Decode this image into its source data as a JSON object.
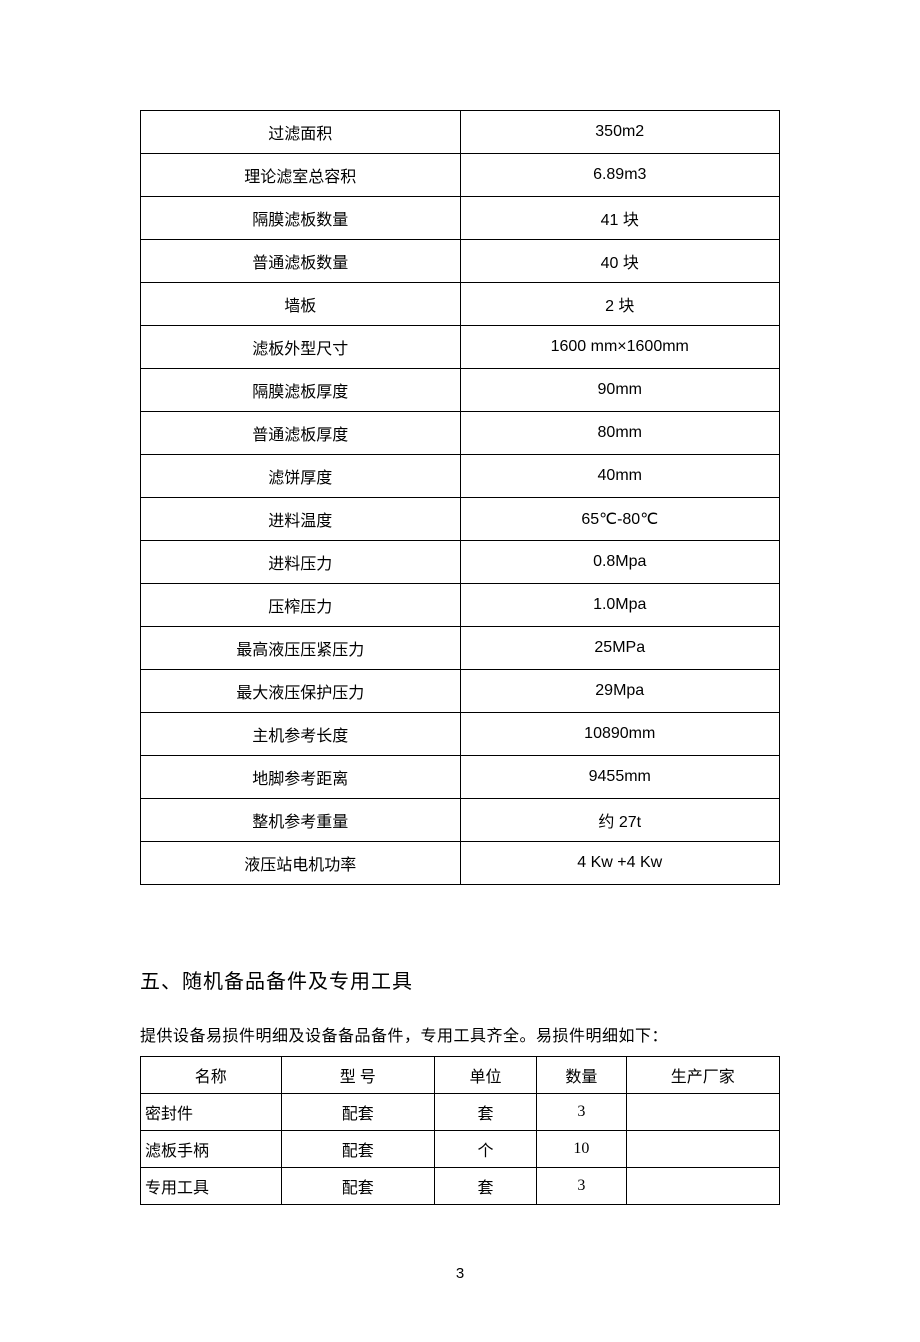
{
  "specs": {
    "rows": [
      {
        "label": "过滤面积",
        "value": "350m2"
      },
      {
        "label": "理论滤室总容积",
        "value": "6.89m3"
      },
      {
        "label": "隔膜滤板数量",
        "value": "41 块"
      },
      {
        "label": "普通滤板数量",
        "value": "40 块"
      },
      {
        "label": "墙板",
        "value": "2 块"
      },
      {
        "label": "滤板外型尺寸",
        "value": "1600 mm×1600mm"
      },
      {
        "label": "隔膜滤板厚度",
        "value": "90mm"
      },
      {
        "label": "普通滤板厚度",
        "value": "80mm"
      },
      {
        "label": "滤饼厚度",
        "value": "40mm"
      },
      {
        "label": "进料温度",
        "value": "65℃-80℃"
      },
      {
        "label": "进料压力",
        "value": "0.8Mpa"
      },
      {
        "label": "压榨压力",
        "value": "1.0Mpa"
      },
      {
        "label": "最高液压压紧压力",
        "value": "25MPa"
      },
      {
        "label": "最大液压保护压力",
        "value": "29Mpa"
      },
      {
        "label": "主机参考长度",
        "value": "10890mm"
      },
      {
        "label": "地脚参考距离",
        "value": "9455mm"
      },
      {
        "label": "整机参考重量",
        "value": "约 27t"
      },
      {
        "label": "液压站电机功率",
        "value": "4 Kw +4 Kw"
      }
    ]
  },
  "section5": {
    "heading": "五、随机备品备件及专用工具",
    "intro": "提供设备易损件明细及设备备品备件，专用工具齐全。易损件明细如下：",
    "headers": {
      "name": "名称",
      "model": "型  号",
      "unit": "单位",
      "qty": "数量",
      "mfr": "生产厂家"
    },
    "rows": [
      {
        "name": "密封件",
        "model": "配套",
        "unit": "套",
        "qty": "3",
        "mfr": ""
      },
      {
        "name": "滤板手柄",
        "model": "配套",
        "unit": "个",
        "qty": "10",
        "mfr": ""
      },
      {
        "name": "专用工具",
        "model": "配套",
        "unit": "套",
        "qty": "3",
        "mfr": ""
      }
    ]
  },
  "page_number": "3"
}
